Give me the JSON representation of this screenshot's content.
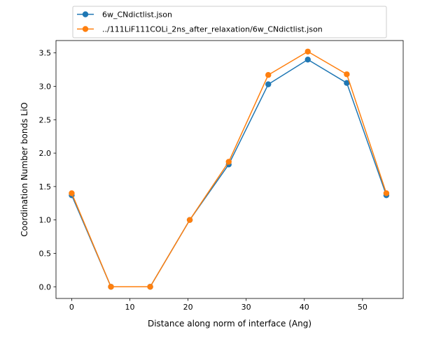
{
  "chart_data": {
    "type": "line",
    "title": "",
    "xlabel": "Distance along norm of interface (Ang)",
    "ylabel": "Coordination Number bonds LiO",
    "xlim": [
      -2.7,
      57.0
    ],
    "ylim": [
      -0.175,
      3.685
    ],
    "xticks": [
      0,
      10,
      20,
      30,
      40,
      50
    ],
    "xtick_labels": [
      "0",
      "10",
      "20",
      "30",
      "40",
      "50"
    ],
    "yticks": [
      0.0,
      0.5,
      1.0,
      1.5,
      2.0,
      2.5,
      3.0,
      3.5
    ],
    "ytick_labels": [
      "0.0",
      "0.5",
      "1.0",
      "1.5",
      "2.0",
      "2.5",
      "3.0",
      "3.5"
    ],
    "grid": false,
    "legend_position": "top-center",
    "x": [
      0,
      6.75,
      13.5,
      20.3,
      27.0,
      33.8,
      40.6,
      47.3,
      54.1
    ],
    "series": [
      {
        "name": "6w_CNdictlist.json",
        "color": "#1f77b4",
        "values": [
          1.37,
          0.0,
          0.0,
          1.0,
          1.83,
          3.03,
          3.4,
          3.05,
          1.37
        ]
      },
      {
        "name": "../111LiF111COLi_2ns_after_relaxation/6w_CNdictlist.json",
        "color": "#ff7f0e",
        "values": [
          1.4,
          0.0,
          0.0,
          1.0,
          1.87,
          3.17,
          3.52,
          3.18,
          1.4
        ]
      }
    ]
  }
}
